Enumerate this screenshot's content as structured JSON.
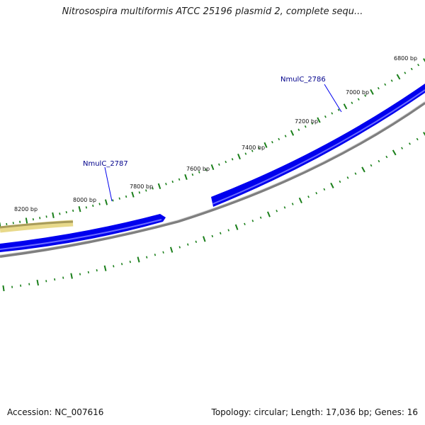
{
  "title": "Nitrosospira multiformis ATCC 25196 plasmid 2, complete sequ...",
  "footer": {
    "accession": "Accession: NC_007616",
    "summary": "Topology: circular; Length: 17,036 bp; Genes: 16"
  },
  "colors": {
    "gene": "#0000ee",
    "gene_light": "#6a6aff",
    "backbone": "#7f7f7f",
    "ticks": "#1a7f1a",
    "highlight": "#e8d98a",
    "label_text": "#00008b"
  },
  "ruler_labels": [
    "6800 bp",
    "7000 bp",
    "7200 bp",
    "7400 bp",
    "7600 bp",
    "7800 bp",
    "8000 bp",
    "8200 bp"
  ],
  "gene_labels": [
    "NmulC_2786",
    "NmulC_2787"
  ]
}
